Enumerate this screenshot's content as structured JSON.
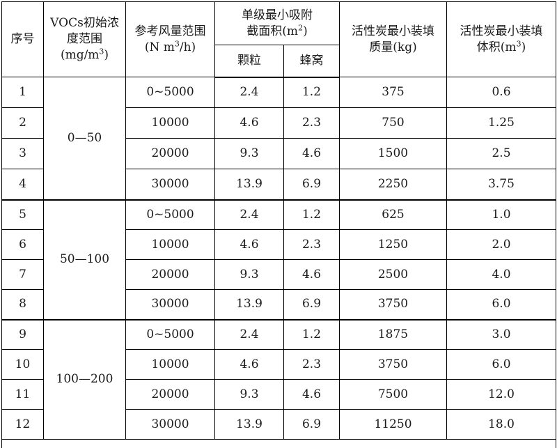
{
  "headers": {
    "seq": "序号",
    "conc_line1": "VOCs初始浓",
    "conc_line2": "度范围",
    "conc_unit_base": "(mg/m",
    "conc_unit_sup": "3",
    "conc_unit_close": ")",
    "flow_line1": "参考风量范围",
    "flow_unit_pre": "(N m",
    "flow_unit_sup": "3",
    "flow_unit_post": "/h)",
    "area_line1": "单级最小吸附",
    "area_line2_base": "截面积(m",
    "area_line2_sup": "2",
    "area_line2_close": ")",
    "area_granule": "颗粒",
    "area_honeycomb": "蜂窝",
    "mass_line1": "活性炭最小装填",
    "mass_line2": "质量(kg)",
    "vol_line1": "活性炭最小装填",
    "vol_line2_base": "体积(m",
    "vol_line2_sup": "3",
    "vol_line2_close": ")"
  },
  "groups": [
    {
      "concentration": "0—50",
      "rows": [
        {
          "seq": "1",
          "flow": "0~5000",
          "granule": "2.4",
          "honeycomb": "1.2",
          "mass": "375",
          "volume": "0.6"
        },
        {
          "seq": "2",
          "flow": "10000",
          "granule": "4.6",
          "honeycomb": "2.3",
          "mass": "750",
          "volume": "1.25"
        },
        {
          "seq": "3",
          "flow": "20000",
          "granule": "9.3",
          "honeycomb": "4.6",
          "mass": "1500",
          "volume": "2.5"
        },
        {
          "seq": "4",
          "flow": "30000",
          "granule": "13.9",
          "honeycomb": "6.9",
          "mass": "2250",
          "volume": "3.75"
        }
      ]
    },
    {
      "concentration": "50—100",
      "rows": [
        {
          "seq": "5",
          "flow": "0~5000",
          "granule": "2.4",
          "honeycomb": "1.2",
          "mass": "625",
          "volume": "1.0"
        },
        {
          "seq": "6",
          "flow": "10000",
          "granule": "4.6",
          "honeycomb": "2.3",
          "mass": "1250",
          "volume": "2.0"
        },
        {
          "seq": "7",
          "flow": "20000",
          "granule": "9.3",
          "honeycomb": "4.6",
          "mass": "2500",
          "volume": "4.0"
        },
        {
          "seq": "8",
          "flow": "30000",
          "granule": "13.9",
          "honeycomb": "6.9",
          "mass": "3750",
          "volume": "6.0"
        }
      ]
    },
    {
      "concentration": "100—200",
      "rows": [
        {
          "seq": "9",
          "flow": "0~5000",
          "granule": "2.4",
          "honeycomb": "1.2",
          "mass": "1875",
          "volume": "3.0"
        },
        {
          "seq": "10",
          "flow": "10000",
          "granule": "4.6",
          "honeycomb": "2.3",
          "mass": "3750",
          "volume": "6.0"
        },
        {
          "seq": "11",
          "flow": "20000",
          "granule": "9.3",
          "honeycomb": "4.6",
          "mass": "7500",
          "volume": "12.0"
        },
        {
          "seq": "12",
          "flow": "30000",
          "granule": "13.9",
          "honeycomb": "6.9",
          "mass": "11250",
          "volume": "18.0"
        }
      ]
    }
  ]
}
